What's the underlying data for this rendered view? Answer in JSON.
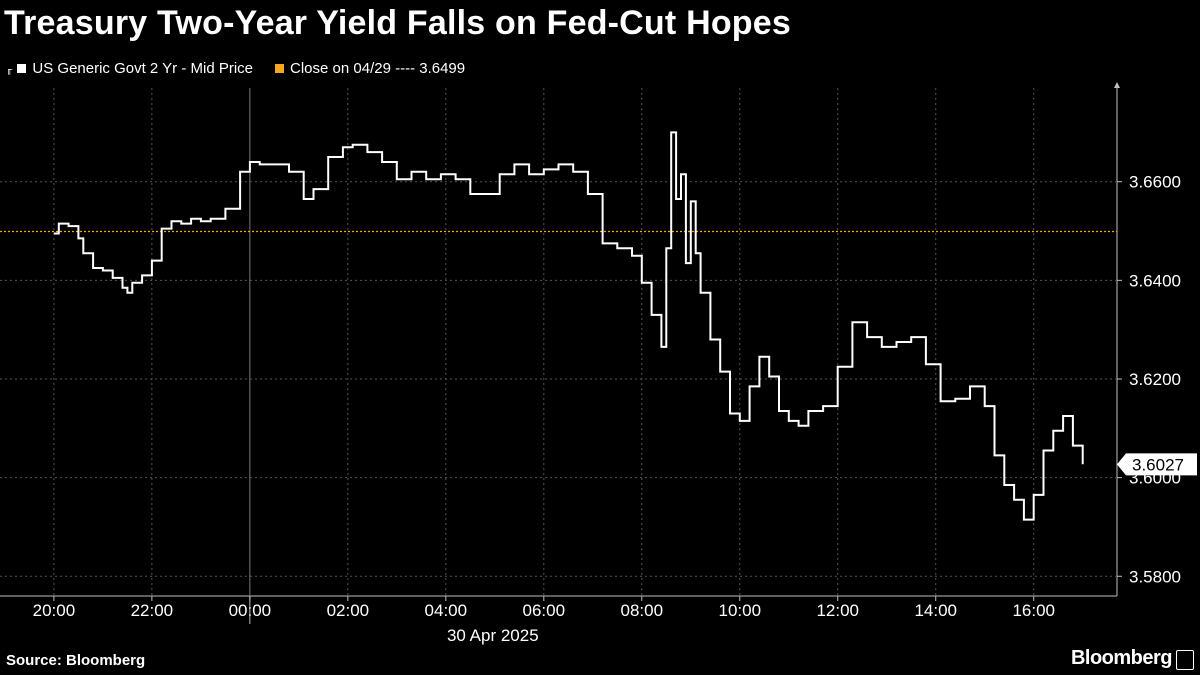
{
  "title": "Treasury Two-Year Yield Falls on Fed-Cut Hopes",
  "legend": {
    "series_label": "US Generic Govt 2 Yr - Mid Price",
    "reference_label": "Close on 04/29 ---- 3.6499",
    "series_color": "#ffffff",
    "reference_color": "#f5a623"
  },
  "source": "Source: Bloomberg",
  "brand": "Bloomberg",
  "brand_mark": "ᵔ",
  "chart_data": {
    "type": "line",
    "title": "Treasury Two-Year Yield Falls on Fed-Cut Hopes",
    "xlabel": "",
    "ylabel": "",
    "date_label": "30 Apr 2025",
    "x_tick_labels": [
      "20:00",
      "22:00",
      "00:00",
      "02:00",
      "04:00",
      "06:00",
      "08:00",
      "10:00",
      "12:00",
      "14:00",
      "16:00"
    ],
    "x_ticks_hours": [
      20,
      22,
      24,
      26,
      28,
      30,
      32,
      34,
      36,
      38,
      40
    ],
    "xlim_hours": [
      18.9,
      41.7
    ],
    "y_tick_labels": [
      "3.5800",
      "3.6000",
      "3.6200",
      "3.6400",
      "3.6600"
    ],
    "y_ticks": [
      3.58,
      3.6,
      3.62,
      3.64,
      3.66
    ],
    "ylim": [
      3.576,
      3.679
    ],
    "reference_line": {
      "label": "Close on 04/29",
      "value": 3.6499
    },
    "last_value_label": "3.6027",
    "last_value": 3.6027,
    "grid": true,
    "x_unit": "hours from 00:00 on 29 Apr 2025",
    "series": [
      {
        "name": "US Generic Govt 2 Yr - Mid Price",
        "x": [
          20.0,
          20.1,
          20.3,
          20.5,
          20.6,
          20.8,
          21.0,
          21.2,
          21.4,
          21.5,
          21.6,
          21.8,
          22.0,
          22.2,
          22.4,
          22.6,
          22.8,
          23.0,
          23.2,
          23.5,
          23.8,
          24.0,
          24.2,
          24.5,
          24.8,
          25.1,
          25.3,
          25.6,
          25.9,
          26.1,
          26.4,
          26.7,
          27.0,
          27.3,
          27.6,
          27.9,
          28.2,
          28.5,
          28.8,
          29.1,
          29.4,
          29.7,
          30.0,
          30.3,
          30.6,
          30.9,
          31.2,
          31.5,
          31.8,
          32.0,
          32.2,
          32.4,
          32.5,
          32.6,
          32.7,
          32.8,
          32.9,
          33.0,
          33.1,
          33.2,
          33.4,
          33.6,
          33.8,
          34.0,
          34.2,
          34.4,
          34.6,
          34.8,
          35.0,
          35.2,
          35.4,
          35.7,
          36.0,
          36.3,
          36.6,
          36.9,
          37.2,
          37.5,
          37.8,
          38.1,
          38.4,
          38.7,
          39.0,
          39.2,
          39.4,
          39.6,
          39.8,
          40.0,
          40.2,
          40.4,
          40.6,
          40.8,
          41.0
        ],
        "values": [
          3.6495,
          3.6515,
          3.651,
          3.6485,
          3.6455,
          3.6425,
          3.642,
          3.6405,
          3.6385,
          3.6375,
          3.6395,
          3.641,
          3.644,
          3.6505,
          3.652,
          3.6515,
          3.6525,
          3.652,
          3.6525,
          3.6545,
          3.662,
          3.664,
          3.6635,
          3.6635,
          3.662,
          3.6565,
          3.6585,
          3.665,
          3.667,
          3.6675,
          3.666,
          3.664,
          3.6605,
          3.662,
          3.6605,
          3.6615,
          3.6605,
          3.6575,
          3.6575,
          3.6615,
          3.6635,
          3.6615,
          3.6625,
          3.6635,
          3.662,
          3.6575,
          3.6475,
          3.6465,
          3.645,
          3.6395,
          3.633,
          3.6265,
          3.6465,
          3.67,
          3.6565,
          3.6615,
          3.6435,
          3.656,
          3.6455,
          3.6375,
          3.628,
          3.6215,
          3.613,
          3.6115,
          3.6185,
          3.6245,
          3.6205,
          3.6135,
          3.6115,
          3.6105,
          3.6135,
          3.6145,
          3.6225,
          3.6315,
          3.6285,
          3.6265,
          3.6275,
          3.6285,
          3.623,
          3.6155,
          3.616,
          3.6185,
          3.6145,
          3.6045,
          3.5985,
          3.5955,
          3.5915,
          3.5965,
          3.6055,
          3.6095,
          3.6125,
          3.6065,
          3.6027
        ]
      }
    ]
  }
}
